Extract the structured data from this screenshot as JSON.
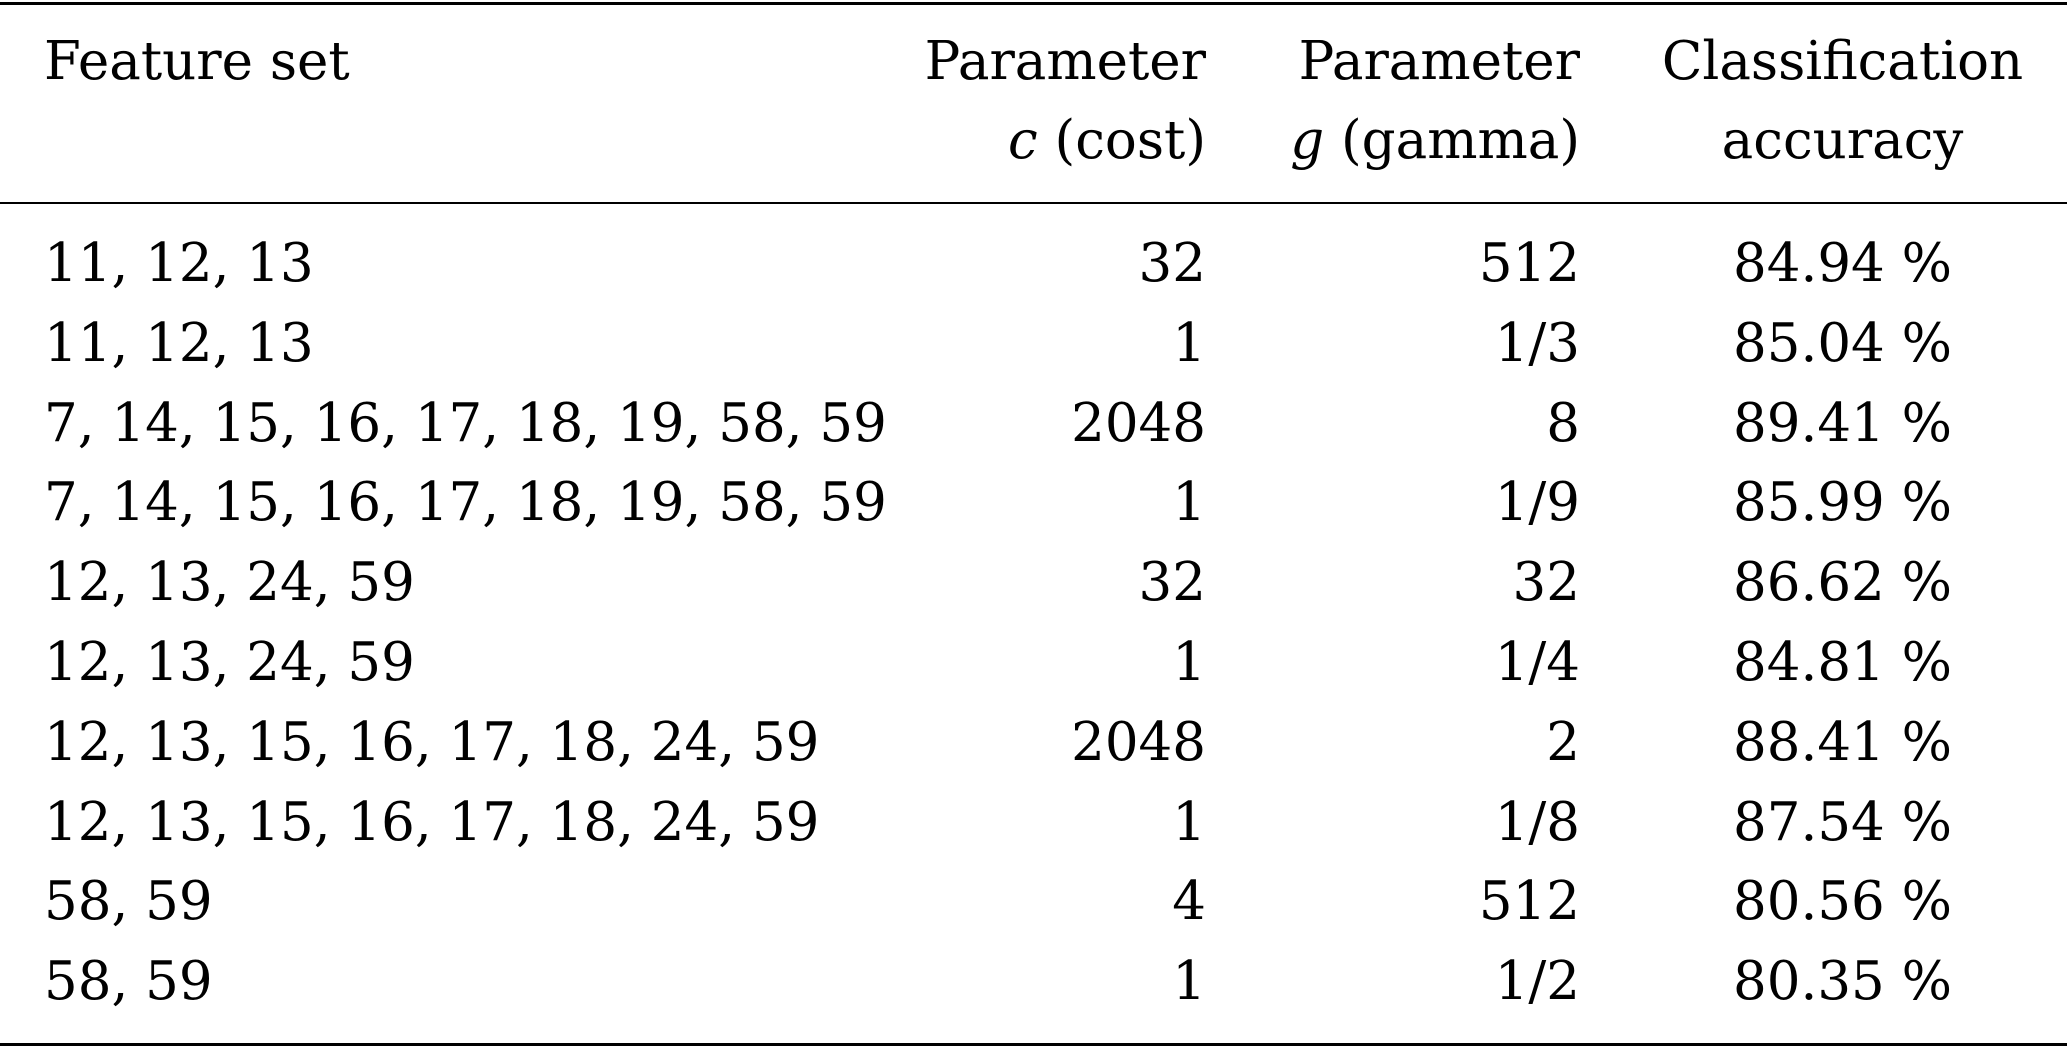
{
  "table": {
    "headers": [
      {
        "lines": [
          "Feature set"
        ]
      },
      {
        "line1": "Parameter",
        "symbol": "c",
        "suffix": " (cost)"
      },
      {
        "line1": "Parameter",
        "symbol": "g",
        "suffix": " (gamma)"
      },
      {
        "lines": [
          "Classification",
          "accuracy"
        ]
      }
    ],
    "rows": [
      {
        "feature_set": "11, 12, 13",
        "cost": "32",
        "gamma": "512",
        "accuracy": "84.94 %"
      },
      {
        "feature_set": "11, 12, 13",
        "cost": "1",
        "gamma": "1/3",
        "accuracy": "85.04 %"
      },
      {
        "feature_set": "7, 14, 15, 16, 17, 18, 19, 58, 59",
        "cost": "2048",
        "gamma": "8",
        "accuracy": "89.41 %"
      },
      {
        "feature_set": "7, 14, 15, 16, 17, 18, 19, 58, 59",
        "cost": "1",
        "gamma": "1/9",
        "accuracy": "85.99 %"
      },
      {
        "feature_set": "12, 13, 24, 59",
        "cost": "32",
        "gamma": "32",
        "accuracy": "86.62 %"
      },
      {
        "feature_set": "12, 13, 24, 59",
        "cost": "1",
        "gamma": "1/4",
        "accuracy": "84.81 %"
      },
      {
        "feature_set": "12, 13, 15, 16, 17, 18, 24, 59",
        "cost": "2048",
        "gamma": "2",
        "accuracy": "88.41 %"
      },
      {
        "feature_set": "12, 13, 15, 16, 17, 18, 24, 59",
        "cost": "1",
        "gamma": "1/8",
        "accuracy": "87.54 %"
      },
      {
        "feature_set": "58, 59",
        "cost": "4",
        "gamma": "512",
        "accuracy": "80.56 %"
      },
      {
        "feature_set": "58, 59",
        "cost": "1",
        "gamma": "1/2",
        "accuracy": "80.35 %"
      }
    ]
  }
}
